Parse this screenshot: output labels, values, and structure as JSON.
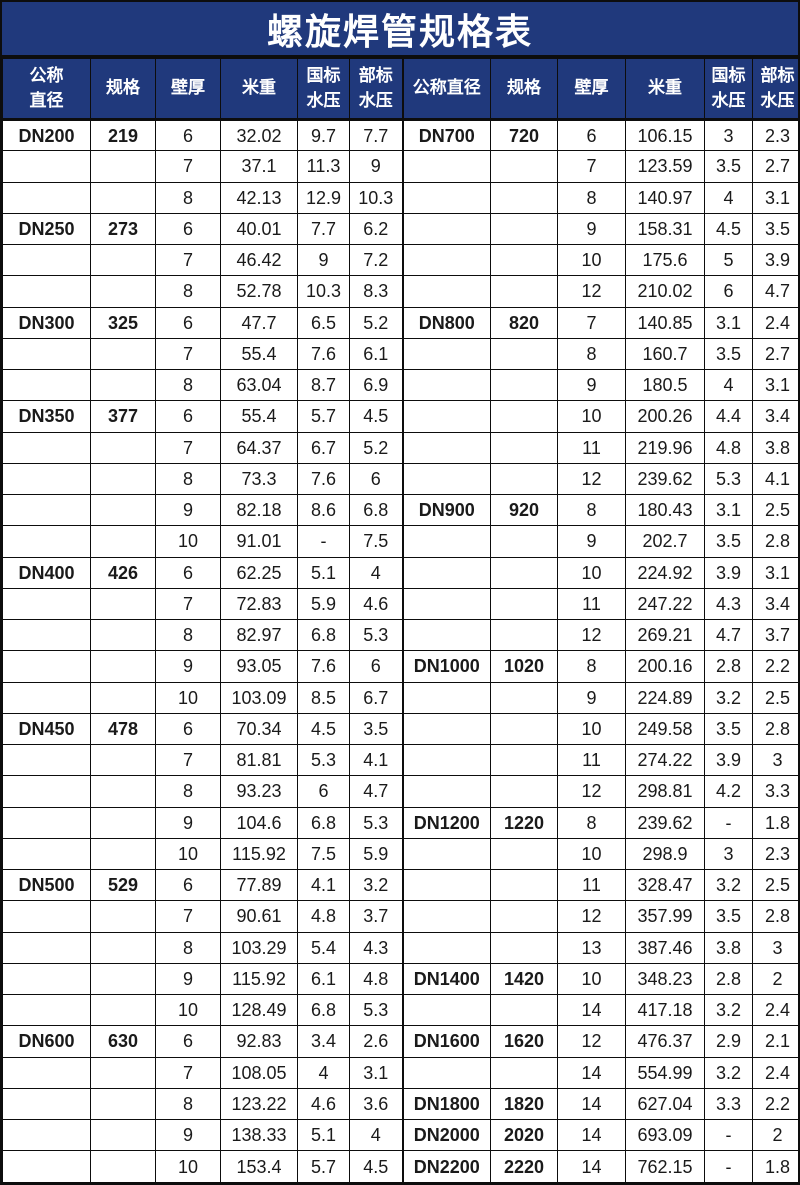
{
  "title": "螺旋焊管规格表",
  "colors": {
    "header_bg": "#20397c",
    "header_text": "#ffffff",
    "border": "#0d0d0d",
    "body_bg": "#ffffff",
    "body_text": "#1a1a1a"
  },
  "columns": {
    "left": [
      "公称\n直径",
      "规格",
      "壁厚",
      "米重",
      "国标\n水压",
      "部标\n水压"
    ],
    "right": [
      "公称直径",
      "规格",
      "壁厚",
      "米重",
      "国标\n水压",
      "部标\n水压"
    ]
  },
  "rows_left": [
    [
      "DN200",
      "219",
      "6",
      "32.02",
      "9.7",
      "7.7"
    ],
    [
      "",
      "",
      "7",
      "37.1",
      "11.3",
      "9"
    ],
    [
      "",
      "",
      "8",
      "42.13",
      "12.9",
      "10.3"
    ],
    [
      "DN250",
      "273",
      "6",
      "40.01",
      "7.7",
      "6.2"
    ],
    [
      "",
      "",
      "7",
      "46.42",
      "9",
      "7.2"
    ],
    [
      "",
      "",
      "8",
      "52.78",
      "10.3",
      "8.3"
    ],
    [
      "DN300",
      "325",
      "6",
      "47.7",
      "6.5",
      "5.2"
    ],
    [
      "",
      "",
      "7",
      "55.4",
      "7.6",
      "6.1"
    ],
    [
      "",
      "",
      "8",
      "63.04",
      "8.7",
      "6.9"
    ],
    [
      "DN350",
      "377",
      "6",
      "55.4",
      "5.7",
      "4.5"
    ],
    [
      "",
      "",
      "7",
      "64.37",
      "6.7",
      "5.2"
    ],
    [
      "",
      "",
      "8",
      "73.3",
      "7.6",
      "6"
    ],
    [
      "",
      "",
      "9",
      "82.18",
      "8.6",
      "6.8"
    ],
    [
      "",
      "",
      "10",
      "91.01",
      "-",
      "7.5"
    ],
    [
      "DN400",
      "426",
      "6",
      "62.25",
      "5.1",
      "4"
    ],
    [
      "",
      "",
      "7",
      "72.83",
      "5.9",
      "4.6"
    ],
    [
      "",
      "",
      "8",
      "82.97",
      "6.8",
      "5.3"
    ],
    [
      "",
      "",
      "9",
      "93.05",
      "7.6",
      "6"
    ],
    [
      "",
      "",
      "10",
      "103.09",
      "8.5",
      "6.7"
    ],
    [
      "DN450",
      "478",
      "6",
      "70.34",
      "4.5",
      "3.5"
    ],
    [
      "",
      "",
      "7",
      "81.81",
      "5.3",
      "4.1"
    ],
    [
      "",
      "",
      "8",
      "93.23",
      "6",
      "4.7"
    ],
    [
      "",
      "",
      "9",
      "104.6",
      "6.8",
      "5.3"
    ],
    [
      "",
      "",
      "10",
      "115.92",
      "7.5",
      "5.9"
    ],
    [
      "DN500",
      "529",
      "6",
      "77.89",
      "4.1",
      "3.2"
    ],
    [
      "",
      "",
      "7",
      "90.61",
      "4.8",
      "3.7"
    ],
    [
      "",
      "",
      "8",
      "103.29",
      "5.4",
      "4.3"
    ],
    [
      "",
      "",
      "9",
      "115.92",
      "6.1",
      "4.8"
    ],
    [
      "",
      "",
      "10",
      "128.49",
      "6.8",
      "5.3"
    ],
    [
      "DN600",
      "630",
      "6",
      "92.83",
      "3.4",
      "2.6"
    ],
    [
      "",
      "",
      "7",
      "108.05",
      "4",
      "3.1"
    ],
    [
      "",
      "",
      "8",
      "123.22",
      "4.6",
      "3.6"
    ],
    [
      "",
      "",
      "9",
      "138.33",
      "5.1",
      "4"
    ],
    [
      "",
      "",
      "10",
      "153.4",
      "5.7",
      "4.5"
    ]
  ],
  "rows_right": [
    [
      "DN700",
      "720",
      "6",
      "106.15",
      "3",
      "2.3"
    ],
    [
      "",
      "",
      "7",
      "123.59",
      "3.5",
      "2.7"
    ],
    [
      "",
      "",
      "8",
      "140.97",
      "4",
      "3.1"
    ],
    [
      "",
      "",
      "9",
      "158.31",
      "4.5",
      "3.5"
    ],
    [
      "",
      "",
      "10",
      "175.6",
      "5",
      "3.9"
    ],
    [
      "",
      "",
      "12",
      "210.02",
      "6",
      "4.7"
    ],
    [
      "DN800",
      "820",
      "7",
      "140.85",
      "3.1",
      "2.4"
    ],
    [
      "",
      "",
      "8",
      "160.7",
      "3.5",
      "2.7"
    ],
    [
      "",
      "",
      "9",
      "180.5",
      "4",
      "3.1"
    ],
    [
      "",
      "",
      "10",
      "200.26",
      "4.4",
      "3.4"
    ],
    [
      "",
      "",
      "11",
      "219.96",
      "4.8",
      "3.8"
    ],
    [
      "",
      "",
      "12",
      "239.62",
      "5.3",
      "4.1"
    ],
    [
      "DN900",
      "920",
      "8",
      "180.43",
      "3.1",
      "2.5"
    ],
    [
      "",
      "",
      "9",
      "202.7",
      "3.5",
      "2.8"
    ],
    [
      "",
      "",
      "10",
      "224.92",
      "3.9",
      "3.1"
    ],
    [
      "",
      "",
      "11",
      "247.22",
      "4.3",
      "3.4"
    ],
    [
      "",
      "",
      "12",
      "269.21",
      "4.7",
      "3.7"
    ],
    [
      "DN1000",
      "1020",
      "8",
      "200.16",
      "2.8",
      "2.2"
    ],
    [
      "",
      "",
      "9",
      "224.89",
      "3.2",
      "2.5"
    ],
    [
      "",
      "",
      "10",
      "249.58",
      "3.5",
      "2.8"
    ],
    [
      "",
      "",
      "11",
      "274.22",
      "3.9",
      "3"
    ],
    [
      "",
      "",
      "12",
      "298.81",
      "4.2",
      "3.3"
    ],
    [
      "DN1200",
      "1220",
      "8",
      "239.62",
      "-",
      "1.8"
    ],
    [
      "",
      "",
      "10",
      "298.9",
      "3",
      "2.3"
    ],
    [
      "",
      "",
      "11",
      "328.47",
      "3.2",
      "2.5"
    ],
    [
      "",
      "",
      "12",
      "357.99",
      "3.5",
      "2.8"
    ],
    [
      "",
      "",
      "13",
      "387.46",
      "3.8",
      "3"
    ],
    [
      "DN1400",
      "1420",
      "10",
      "348.23",
      "2.8",
      "2"
    ],
    [
      "",
      "",
      "14",
      "417.18",
      "3.2",
      "2.4"
    ],
    [
      "DN1600",
      "1620",
      "12",
      "476.37",
      "2.9",
      "2.1"
    ],
    [
      "",
      "",
      "14",
      "554.99",
      "3.2",
      "2.4"
    ],
    [
      "DN1800",
      "1820",
      "14",
      "627.04",
      "3.3",
      "2.2"
    ],
    [
      "DN2000",
      "2020",
      "14",
      "693.09",
      "-",
      "2"
    ],
    [
      "DN2200",
      "2220",
      "14",
      "762.15",
      "-",
      "1.8"
    ]
  ]
}
